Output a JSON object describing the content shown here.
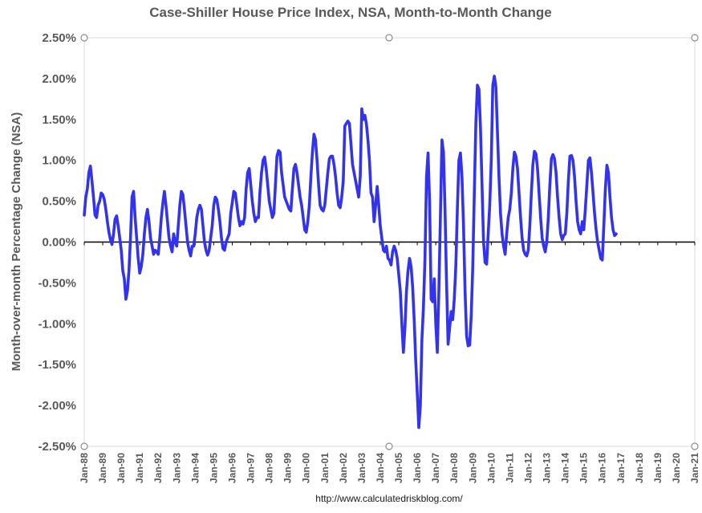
{
  "chart_data": {
    "type": "line",
    "title": "Case-Shiller House Price Index, NSA, Month-to-Month Change",
    "ylabel": "Month-over-month Percentage Change (NSA)",
    "xlabel": "",
    "source": "http://www.calculatedriskblog.com/",
    "ylim": [
      -2.5,
      2.5
    ],
    "xlim": [
      "Jan-88",
      "Jan-21"
    ],
    "y_ticks": [
      "2.50%",
      "2.00%",
      "1.50%",
      "1.00%",
      "0.50%",
      "0.00%",
      "-0.50%",
      "-1.00%",
      "-1.50%",
      "-2.00%",
      "-2.50%"
    ],
    "x_ticks": [
      "Jan-88",
      "Jan-89",
      "Jan-90",
      "Jan-91",
      "Jan-92",
      "Jan-93",
      "Jan-94",
      "Jan-95",
      "Jan-96",
      "Jan-97",
      "Jan-98",
      "Jan-99",
      "Jan-00",
      "Jan-01",
      "Jan-02",
      "Jan-03",
      "Jan-04",
      "Jan-05",
      "Jan-06",
      "Jan-07",
      "Jan-08",
      "Jan-09",
      "Jan-10",
      "Jan-11",
      "Jan-12",
      "Jan-13",
      "Jan-14",
      "Jan-15",
      "Jan-16",
      "Jan-17",
      "Jan-18",
      "Jan-19",
      "Jan-20",
      "Jan-21"
    ],
    "grid": false,
    "colors": {
      "series": "#3333ee",
      "zero_line": "#000000",
      "frame": "#d9d9d9"
    },
    "series": [
      {
        "start": "Jan-88",
        "frequency": "monthly",
        "values": [
          0.33,
          0.55,
          0.65,
          0.85,
          0.93,
          0.75,
          0.55,
          0.33,
          0.3,
          0.45,
          0.5,
          0.6,
          0.58,
          0.52,
          0.4,
          0.25,
          0.12,
          0.03,
          -0.03,
          0.1,
          0.28,
          0.32,
          0.2,
          0.05,
          -0.1,
          -0.35,
          -0.45,
          -0.7,
          -0.6,
          -0.35,
          0.05,
          0.55,
          0.62,
          0.3,
          0.05,
          -0.2,
          -0.38,
          -0.3,
          -0.15,
          0.1,
          0.3,
          0.4,
          0.25,
          0.05,
          -0.05,
          -0.15,
          -0.1,
          -0.12,
          -0.15,
          0.05,
          0.3,
          0.48,
          0.62,
          0.45,
          0.25,
          0.05,
          -0.05,
          -0.12,
          0.1,
          0.0,
          -0.05,
          0.2,
          0.45,
          0.62,
          0.58,
          0.4,
          0.2,
          0.0,
          -0.1,
          -0.17,
          -0.05,
          -0.05,
          0.1,
          0.3,
          0.4,
          0.45,
          0.4,
          0.2,
          0.0,
          -0.1,
          -0.16,
          -0.1,
          0.05,
          0.2,
          0.45,
          0.55,
          0.52,
          0.4,
          0.25,
          0.05,
          -0.08,
          -0.1,
          0.0,
          0.05,
          0.1,
          0.35,
          0.48,
          0.62,
          0.6,
          0.45,
          0.3,
          0.2,
          0.25,
          0.22,
          0.3,
          0.65,
          0.85,
          0.9,
          0.7,
          0.5,
          0.35,
          0.25,
          0.3,
          0.3,
          0.62,
          0.85,
          1.0,
          1.04,
          0.9,
          0.7,
          0.5,
          0.4,
          0.3,
          0.35,
          0.7,
          1.05,
          1.12,
          1.1,
          0.85,
          0.7,
          0.55,
          0.5,
          0.45,
          0.4,
          0.38,
          0.65,
          0.9,
          0.95,
          0.85,
          0.7,
          0.55,
          0.45,
          0.3,
          0.15,
          0.12,
          0.25,
          0.45,
          0.8,
          1.1,
          1.32,
          1.25,
          1.0,
          0.7,
          0.45,
          0.4,
          0.38,
          0.45,
          0.65,
          0.85,
          1.02,
          1.05,
          1.05,
          0.95,
          0.8,
          0.6,
          0.45,
          0.42,
          0.55,
          0.75,
          1.42,
          1.45,
          1.48,
          1.45,
          1.2,
          0.95,
          0.85,
          0.75,
          0.65,
          0.55,
          0.8,
          1.63,
          1.5,
          1.55,
          1.45,
          1.25,
          1.0,
          0.6,
          0.55,
          0.25,
          0.45,
          0.68,
          0.45,
          0.2,
          0.05,
          -0.1,
          -0.12,
          -0.05,
          -0.2,
          -0.22,
          -0.28,
          -0.12,
          -0.05,
          -0.1,
          -0.2,
          -0.4,
          -0.6,
          -1.0,
          -1.35,
          -1.05,
          -0.6,
          -0.35,
          -0.2,
          -0.3,
          -0.55,
          -0.95,
          -1.45,
          -1.85,
          -2.27,
          -2.0,
          -1.2,
          -0.8,
          -0.2,
          0.8,
          1.09,
          0.5,
          -0.7,
          -0.73,
          -0.45,
          -1.0,
          -1.35,
          -0.6,
          0.3,
          1.25,
          1.1,
          0.4,
          -0.5,
          -1.25,
          -1.05,
          -0.85,
          -0.95,
          -0.7,
          -0.3,
          0.4,
          1.0,
          1.09,
          0.8,
          0.2,
          -0.6,
          -1.15,
          -1.27,
          -1.26,
          -0.9,
          -0.3,
          0.6,
          1.45,
          1.92,
          1.87,
          1.4,
          0.7,
          0.0,
          -0.25,
          -0.27,
          0.1,
          0.45,
          1.0,
          1.92,
          2.03,
          1.9,
          1.35,
          0.8,
          0.35,
          0.1,
          -0.05,
          -0.15,
          0.1,
          0.3,
          0.4,
          0.6,
          0.9,
          1.1,
          1.05,
          0.9,
          0.6,
          0.3,
          0.05,
          -0.1,
          -0.15,
          -0.17,
          -0.1,
          0.2,
          0.6,
          0.95,
          1.11,
          1.08,
          0.9,
          0.6,
          0.3,
          0.05,
          -0.05,
          -0.12,
          0.0,
          0.3,
          0.7,
          1.02,
          1.07,
          1.02,
          0.85,
          0.55,
          0.3,
          0.1,
          0.03,
          0.08,
          0.1,
          0.35,
          0.75,
          1.05,
          1.06,
          1.0,
          0.8,
          0.5,
          0.25,
          0.15,
          0.1,
          0.25,
          0.15,
          0.4,
          0.7,
          1.0,
          1.03,
          0.85,
          0.6,
          0.35,
          0.15,
          0.0,
          -0.1,
          -0.2,
          -0.22,
          0.2,
          0.65,
          0.94,
          0.85,
          0.55,
          0.3,
          0.15,
          0.08,
          0.1
        ]
      }
    ]
  }
}
